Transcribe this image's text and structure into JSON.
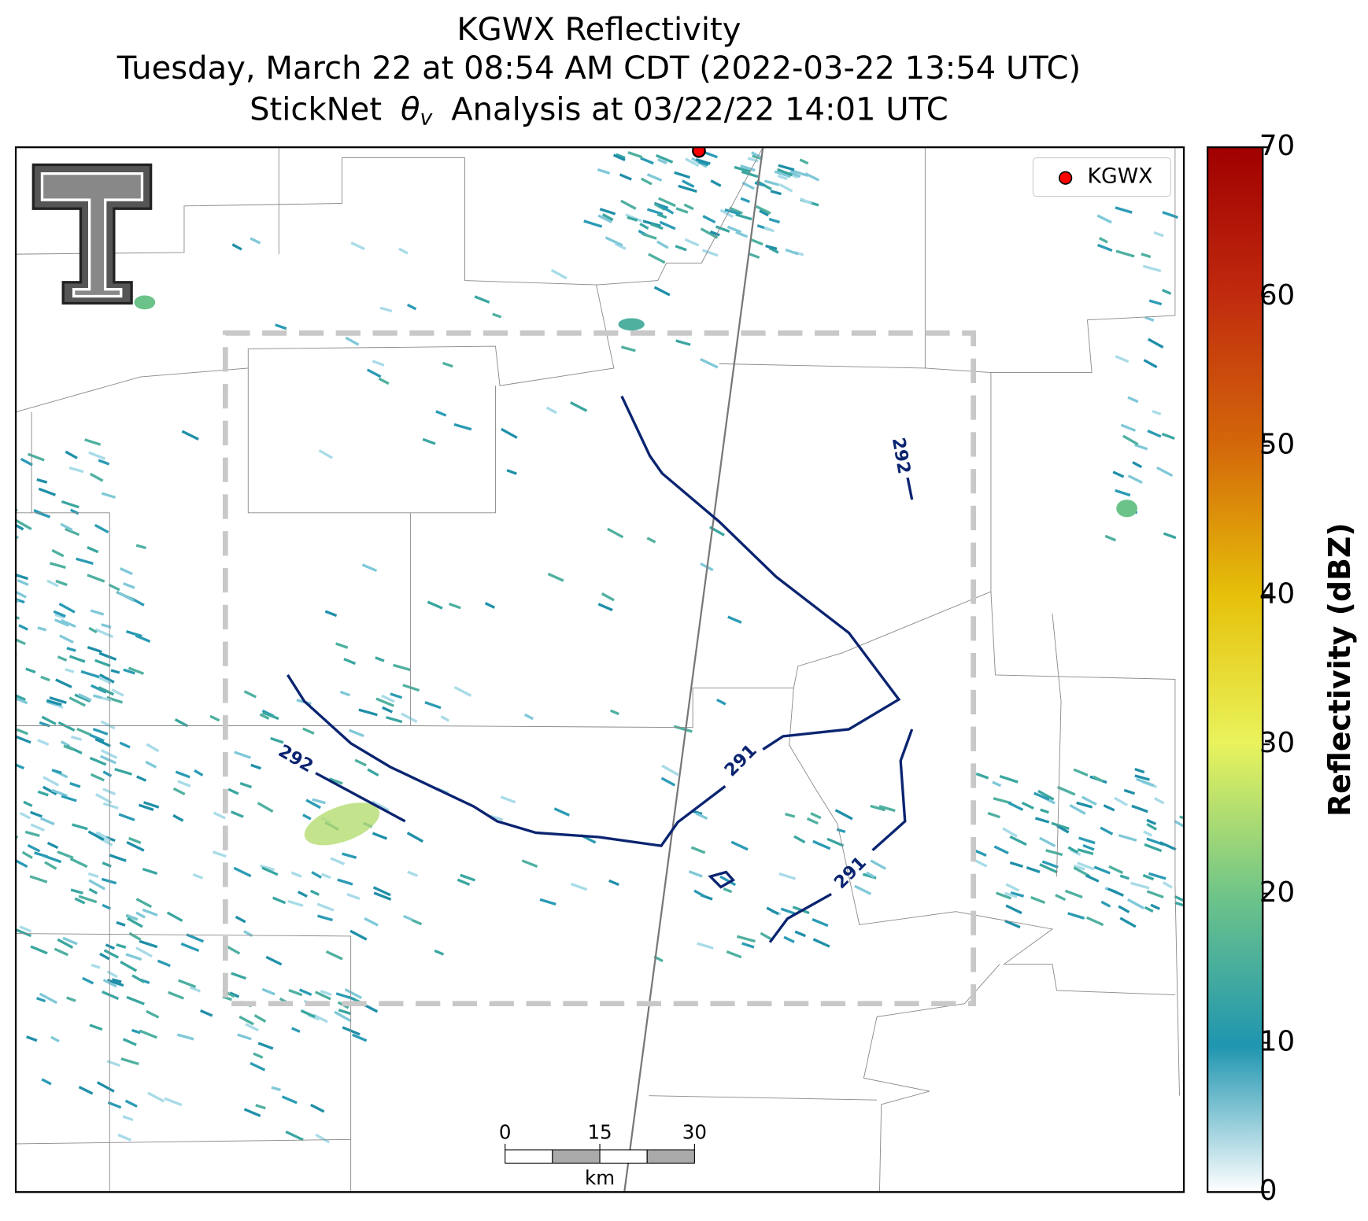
{
  "title": {
    "line1": "KGWX Reflectivity",
    "line2": "Tuesday, March 22 at 08:54 AM CDT (2022-03-22 13:54 UTC)",
    "line3": {
      "before": "StickNet",
      "symbol": "θ",
      "subscript": "v",
      "after": "Analysis at 03/22/22 14:01 UTC"
    }
  },
  "legend": {
    "label": "KGWX",
    "color": "#ff0000"
  },
  "contour_labels": [
    292,
    291,
    291,
    292
  ],
  "scale_bar": {
    "ticks": [
      0,
      15,
      30
    ],
    "unit": "km"
  },
  "colorbar": {
    "label": "Reflectivity (dBZ)",
    "lim": [
      0,
      70
    ],
    "ticks": [
      0,
      10,
      20,
      30,
      40,
      50,
      60,
      70
    ]
  }
}
